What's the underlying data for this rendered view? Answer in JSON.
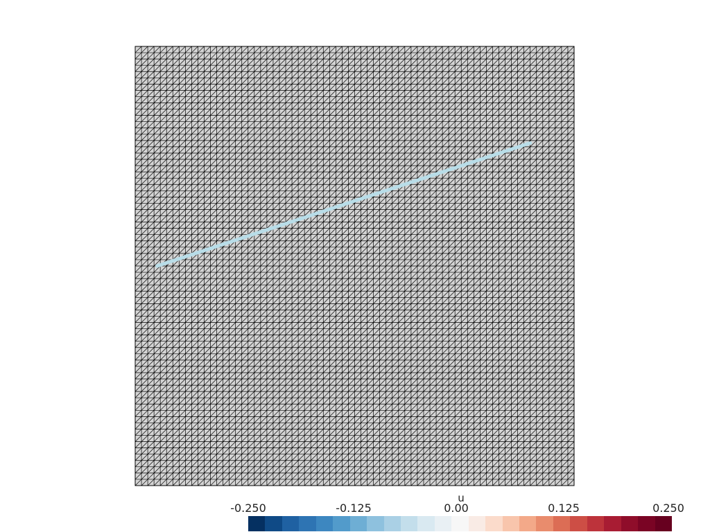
{
  "scalar_bar": {
    "title": "u",
    "tick_labels": [
      "-0.250",
      "-0.125",
      "0.00",
      "0.125",
      "0.250"
    ],
    "range": [
      -0.25,
      0.25
    ],
    "n_colors": 25,
    "colors": [
      "#053061",
      "#0f4a86",
      "#1f61a2",
      "#2e74b3",
      "#3d87c0",
      "#529bcb",
      "#6eaed4",
      "#8ec1de",
      "#aad0e5",
      "#c3deeb",
      "#d9e9f1",
      "#e9f0f4",
      "#f7f7f7",
      "#f9ebe5",
      "#fbdbcb",
      "#f8c5ac",
      "#f3a989",
      "#e98c6d",
      "#dc6d55",
      "#cd4e45",
      "#bd333b",
      "#a81c33",
      "#8f0d2a",
      "#7a0424",
      "#67001f"
    ]
  },
  "mesh": {
    "cells_per_side": 70,
    "fill_color": "#d4d4d4",
    "edge_color": "#000000"
  },
  "line_overlay": {
    "color": "#b8dde8",
    "value_label": "line",
    "endpoints_data": [
      [
        0.05,
        0.5
      ],
      [
        0.9,
        0.78
      ]
    ]
  }
}
